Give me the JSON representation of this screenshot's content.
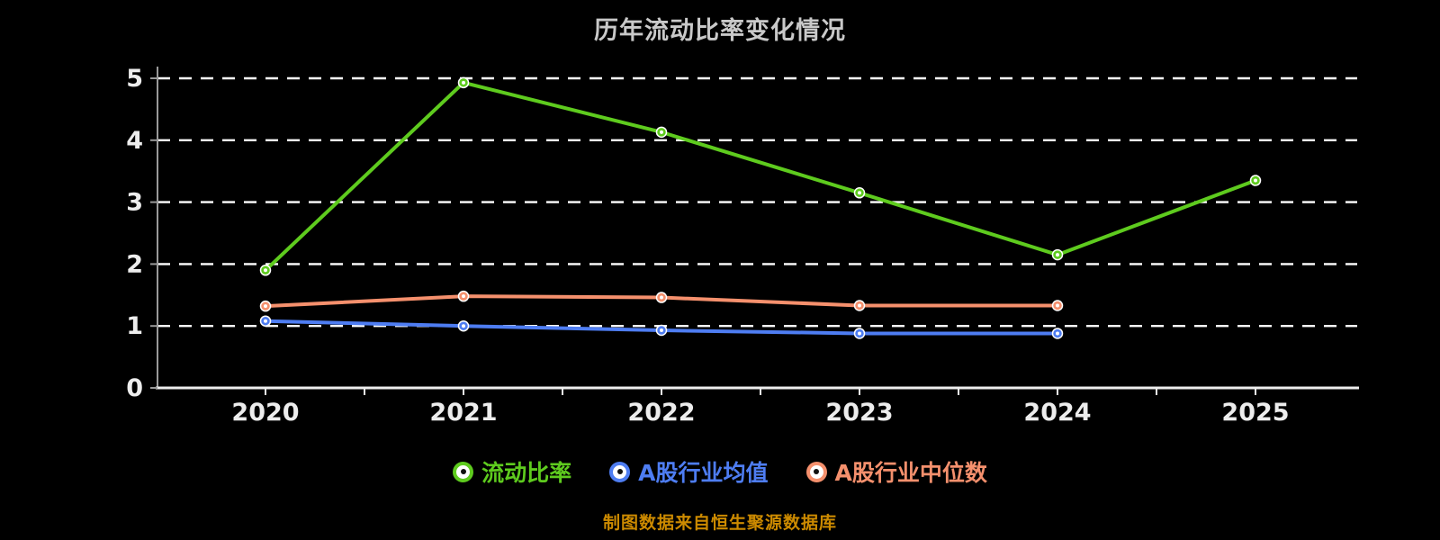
{
  "chart_data": {
    "type": "line",
    "title": "历年流动比率变化情况",
    "x_labels": [
      "2020",
      "2021",
      "2022",
      "2023",
      "2024",
      "2025"
    ],
    "yticks": [
      0,
      1,
      2,
      3,
      4,
      5
    ],
    "ylim": [
      0,
      5
    ],
    "grid": "horizontal-dashed",
    "legend_position": "bottom",
    "series": [
      {
        "name": "流动比率",
        "color": "#5ecb1e",
        "values": [
          1.9,
          4.93,
          4.13,
          3.15,
          2.15,
          3.35
        ]
      },
      {
        "name": "A股行业均值",
        "color": "#4e7df2",
        "values": [
          1.08,
          1.0,
          0.93,
          0.88,
          0.88,
          null
        ]
      },
      {
        "name": "A股行业中位数",
        "color": "#f5906d",
        "values": [
          1.32,
          1.48,
          1.46,
          1.33,
          1.33,
          null
        ]
      }
    ]
  },
  "footer": {
    "source_note": "制图数据来自恒生聚源数据库"
  },
  "colors": {
    "background": "#000000",
    "grid": "#ffffff",
    "y_axis": "#9a9a9a",
    "x_axis": "#ededed",
    "tick_label": "#ededed",
    "title": "#c9c9c9",
    "source_note": "#cc8a00"
  }
}
